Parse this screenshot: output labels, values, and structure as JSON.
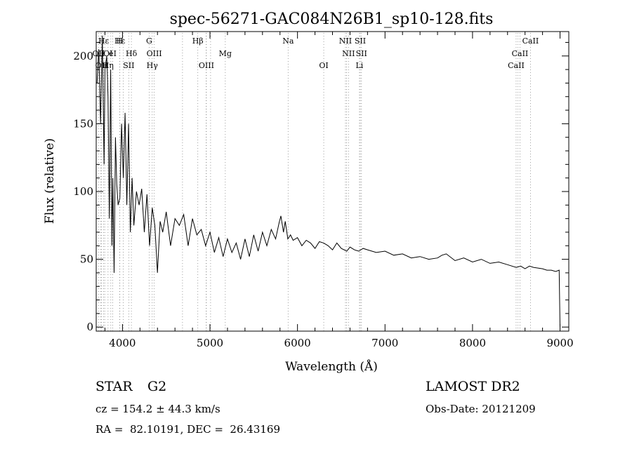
{
  "chart_data": {
    "type": "line",
    "title": "spec-56271-GAC084N26B1_sp10-128.fits",
    "xlabel": "Wavelength (Å)",
    "ylabel": "Flux (relative)",
    "xlim": [
      3700,
      9100
    ],
    "ylim": [
      -3,
      218
    ],
    "x_ticks": [
      4000,
      5000,
      6000,
      7000,
      8000,
      9000
    ],
    "y_ticks": [
      0,
      50,
      100,
      150,
      200
    ],
    "x_tick_labels": [
      "4000",
      "5000",
      "6000",
      "7000",
      "8000",
      "9000"
    ],
    "y_tick_labels": [
      "0",
      "50",
      "100",
      "150",
      "200"
    ],
    "grid": false,
    "series_color": "#000000",
    "line_marker_color": "#888888",
    "series": [
      {
        "x": [
          3710,
          3730,
          3750,
          3770,
          3790,
          3800,
          3820,
          3835,
          3850,
          3865,
          3880,
          3890,
          3905,
          3920,
          3935,
          3950,
          3970,
          3990,
          4010,
          4030,
          4050,
          4070,
          4090,
          4110,
          4130,
          4160,
          4190,
          4220,
          4250,
          4280,
          4310,
          4340,
          4370,
          4400,
          4430,
          4460,
          4500,
          4550,
          4600,
          4650,
          4700,
          4750,
          4800,
          4850,
          4900,
          4950,
          5000,
          5050,
          5100,
          5150,
          5200,
          5250,
          5300,
          5350,
          5400,
          5450,
          5500,
          5550,
          5600,
          5650,
          5700,
          5750,
          5790,
          5810,
          5840,
          5860,
          5890,
          5920,
          5950,
          6000,
          6050,
          6100,
          6150,
          6200,
          6250,
          6300,
          6350,
          6400,
          6450,
          6500,
          6563,
          6600,
          6650,
          6700,
          6750,
          6800,
          6900,
          7000,
          7100,
          7200,
          7300,
          7400,
          7500,
          7600,
          7650,
          7700,
          7800,
          7900,
          8000,
          8100,
          8200,
          8300,
          8400,
          8500,
          8550,
          8600,
          8650,
          8700,
          8800,
          8850,
          8900,
          8950,
          8990,
          9000
        ],
        "y": [
          180,
          205,
          150,
          215,
          120,
          190,
          200,
          170,
          80,
          190,
          60,
          110,
          40,
          140,
          105,
          90,
          95,
          150,
          110,
          158,
          90,
          150,
          70,
          110,
          75,
          100,
          90,
          102,
          70,
          98,
          60,
          88,
          75,
          40,
          78,
          70,
          85,
          60,
          80,
          75,
          83,
          60,
          80,
          68,
          72,
          60,
          70,
          55,
          66,
          52,
          65,
          55,
          62,
          50,
          65,
          52,
          68,
          56,
          70,
          60,
          72,
          65,
          77,
          82,
          70,
          78,
          65,
          68,
          64,
          66,
          60,
          64,
          62,
          58,
          63,
          62,
          60,
          57,
          62,
          58,
          56,
          59,
          57,
          56,
          58,
          57,
          55,
          56,
          53,
          54,
          51,
          52,
          50,
          51,
          53,
          54,
          49,
          51,
          48,
          50,
          47,
          48,
          46,
          44,
          45,
          43,
          45,
          44,
          43,
          42,
          42,
          41,
          42,
          0
        ]
      }
    ],
    "spectral_lines": [
      {
        "label": "Hε",
        "row": 0,
        "x": 3970
      },
      {
        "label": "Hε",
        "row": 0,
        "x": 3785
      },
      {
        "label": "H",
        "row": 0,
        "x": 3968
      },
      {
        "label": "G",
        "row": 0,
        "x": 4305
      },
      {
        "label": "Hβ",
        "row": 0,
        "x": 4861
      },
      {
        "label": "Na",
        "row": 0,
        "x": 5893
      },
      {
        "label": "NII",
        "row": 0,
        "x": 6548
      },
      {
        "label": "SII",
        "row": 0,
        "x": 6717
      },
      {
        "label": "CaII",
        "row": 0,
        "x": 8662
      },
      {
        "label": "OII",
        "row": 1,
        "x": 3727
      },
      {
        "label": "OI",
        "row": 1,
        "x": 3835
      },
      {
        "label": "eI",
        "row": 1,
        "x": 3889
      },
      {
        "label": "Hδ",
        "row": 1,
        "x": 4102
      },
      {
        "label": "OIII",
        "row": 1,
        "x": 4363
      },
      {
        "label": "Mg",
        "row": 1,
        "x": 5175
      },
      {
        "label": "NII",
        "row": 1,
        "x": 6583
      },
      {
        "label": "SII",
        "row": 1,
        "x": 6731
      },
      {
        "label": "CaII",
        "row": 1,
        "x": 8542
      },
      {
        "label": "OII",
        "row": 2,
        "x": 3760
      },
      {
        "label": "Hη",
        "row": 2,
        "x": 3835
      },
      {
        "label": "SII",
        "row": 2,
        "x": 4072
      },
      {
        "label": "Hγ",
        "row": 2,
        "x": 4340
      },
      {
        "label": "OIII",
        "row": 2,
        "x": 4959
      },
      {
        "label": "OI",
        "row": 2,
        "x": 6300
      },
      {
        "label": "Li",
        "row": 2,
        "x": 6708
      },
      {
        "label": "CaII",
        "row": 2,
        "x": 8498
      }
    ],
    "extra_line_positions": [
      3750,
      3798,
      3867,
      4009,
      4686,
      4956,
      5007,
      6562,
      8520
    ]
  },
  "info": {
    "object_class": "STAR",
    "subclass": "G2",
    "survey": "LAMOST DR2",
    "cz": "cz = 154.2 ± 44.3 km/s",
    "obs_date": "Obs-Date: 20121209",
    "coords": "RA =  82.10191, DEC =  26.43169"
  }
}
